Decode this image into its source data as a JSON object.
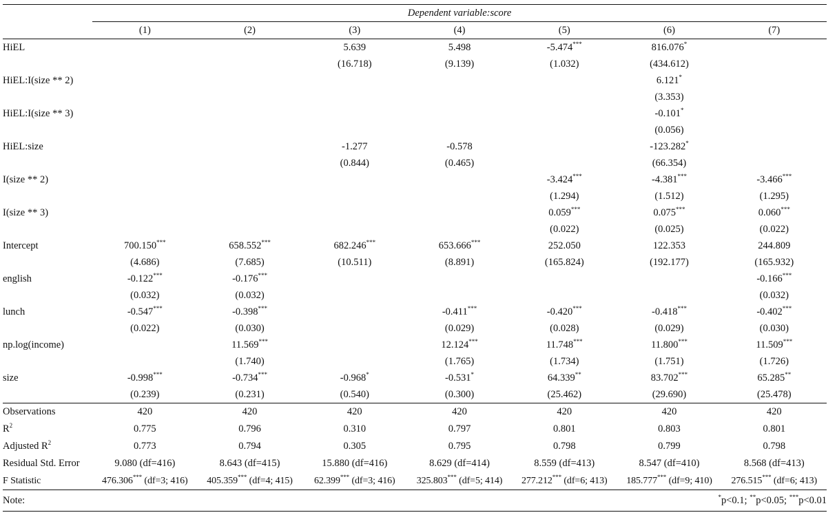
{
  "dependent_variable_label": "Dependent variable:score",
  "columns": [
    "(1)",
    "(2)",
    "(3)",
    "(4)",
    "(5)",
    "(6)",
    "(7)"
  ],
  "coefficients": [
    {
      "label": "HiEL",
      "values": [
        {
          "est": "",
          "stars": "",
          "se": ""
        },
        {
          "est": "",
          "stars": "",
          "se": ""
        },
        {
          "est": "5.639",
          "stars": "",
          "se": "(16.718)"
        },
        {
          "est": "5.498",
          "stars": "",
          "se": "(9.139)"
        },
        {
          "est": "-5.474",
          "stars": "***",
          "se": "(1.032)"
        },
        {
          "est": "816.076",
          "stars": "*",
          "se": "(434.612)"
        },
        {
          "est": "",
          "stars": "",
          "se": ""
        }
      ]
    },
    {
      "label": "HiEL:I(size ** 2)",
      "values": [
        {
          "est": "",
          "stars": "",
          "se": ""
        },
        {
          "est": "",
          "stars": "",
          "se": ""
        },
        {
          "est": "",
          "stars": "",
          "se": ""
        },
        {
          "est": "",
          "stars": "",
          "se": ""
        },
        {
          "est": "",
          "stars": "",
          "se": ""
        },
        {
          "est": "6.121",
          "stars": "*",
          "se": "(3.353)"
        },
        {
          "est": "",
          "stars": "",
          "se": ""
        }
      ]
    },
    {
      "label": "HiEL:I(size ** 3)",
      "values": [
        {
          "est": "",
          "stars": "",
          "se": ""
        },
        {
          "est": "",
          "stars": "",
          "se": ""
        },
        {
          "est": "",
          "stars": "",
          "se": ""
        },
        {
          "est": "",
          "stars": "",
          "se": ""
        },
        {
          "est": "",
          "stars": "",
          "se": ""
        },
        {
          "est": "-0.101",
          "stars": "*",
          "se": "(0.056)"
        },
        {
          "est": "",
          "stars": "",
          "se": ""
        }
      ]
    },
    {
      "label": "HiEL:size",
      "values": [
        {
          "est": "",
          "stars": "",
          "se": ""
        },
        {
          "est": "",
          "stars": "",
          "se": ""
        },
        {
          "est": "-1.277",
          "stars": "",
          "se": "(0.844)"
        },
        {
          "est": "-0.578",
          "stars": "",
          "se": "(0.465)"
        },
        {
          "est": "",
          "stars": "",
          "se": ""
        },
        {
          "est": "-123.282",
          "stars": "*",
          "se": "(66.354)"
        },
        {
          "est": "",
          "stars": "",
          "se": ""
        }
      ]
    },
    {
      "label": "I(size ** 2)",
      "values": [
        {
          "est": "",
          "stars": "",
          "se": ""
        },
        {
          "est": "",
          "stars": "",
          "se": ""
        },
        {
          "est": "",
          "stars": "",
          "se": ""
        },
        {
          "est": "",
          "stars": "",
          "se": ""
        },
        {
          "est": "-3.424",
          "stars": "***",
          "se": "(1.294)"
        },
        {
          "est": "-4.381",
          "stars": "***",
          "se": "(1.512)"
        },
        {
          "est": "-3.466",
          "stars": "***",
          "se": "(1.295)"
        }
      ]
    },
    {
      "label": "I(size ** 3)",
      "values": [
        {
          "est": "",
          "stars": "",
          "se": ""
        },
        {
          "est": "",
          "stars": "",
          "se": ""
        },
        {
          "est": "",
          "stars": "",
          "se": ""
        },
        {
          "est": "",
          "stars": "",
          "se": ""
        },
        {
          "est": "0.059",
          "stars": "***",
          "se": "(0.022)"
        },
        {
          "est": "0.075",
          "stars": "***",
          "se": "(0.025)"
        },
        {
          "est": "0.060",
          "stars": "***",
          "se": "(0.022)"
        }
      ]
    },
    {
      "label": "Intercept",
      "values": [
        {
          "est": "700.150",
          "stars": "***",
          "se": "(4.686)"
        },
        {
          "est": "658.552",
          "stars": "***",
          "se": "(7.685)"
        },
        {
          "est": "682.246",
          "stars": "***",
          "se": "(10.511)"
        },
        {
          "est": "653.666",
          "stars": "***",
          "se": "(8.891)"
        },
        {
          "est": "252.050",
          "stars": "",
          "se": "(165.824)"
        },
        {
          "est": "122.353",
          "stars": "",
          "se": "(192.177)"
        },
        {
          "est": "244.809",
          "stars": "",
          "se": "(165.932)"
        }
      ]
    },
    {
      "label": "english",
      "values": [
        {
          "est": "-0.122",
          "stars": "***",
          "se": "(0.032)"
        },
        {
          "est": "-0.176",
          "stars": "***",
          "se": "(0.032)"
        },
        {
          "est": "",
          "stars": "",
          "se": ""
        },
        {
          "est": "",
          "stars": "",
          "se": ""
        },
        {
          "est": "",
          "stars": "",
          "se": ""
        },
        {
          "est": "",
          "stars": "",
          "se": ""
        },
        {
          "est": "-0.166",
          "stars": "***",
          "se": "(0.032)"
        }
      ]
    },
    {
      "label": "lunch",
      "values": [
        {
          "est": "-0.547",
          "stars": "***",
          "se": "(0.022)"
        },
        {
          "est": "-0.398",
          "stars": "***",
          "se": "(0.030)"
        },
        {
          "est": "",
          "stars": "",
          "se": ""
        },
        {
          "est": "-0.411",
          "stars": "***",
          "se": "(0.029)"
        },
        {
          "est": "-0.420",
          "stars": "***",
          "se": "(0.028)"
        },
        {
          "est": "-0.418",
          "stars": "***",
          "se": "(0.029)"
        },
        {
          "est": "-0.402",
          "stars": "***",
          "se": "(0.030)"
        }
      ]
    },
    {
      "label": "np.log(income)",
      "values": [
        {
          "est": "",
          "stars": "",
          "se": ""
        },
        {
          "est": "11.569",
          "stars": "***",
          "se": "(1.740)"
        },
        {
          "est": "",
          "stars": "",
          "se": ""
        },
        {
          "est": "12.124",
          "stars": "***",
          "se": "(1.765)"
        },
        {
          "est": "11.748",
          "stars": "***",
          "se": "(1.734)"
        },
        {
          "est": "11.800",
          "stars": "***",
          "se": "(1.751)"
        },
        {
          "est": "11.509",
          "stars": "***",
          "se": "(1.726)"
        }
      ]
    },
    {
      "label": "size",
      "values": [
        {
          "est": "-0.998",
          "stars": "***",
          "se": "(0.239)"
        },
        {
          "est": "-0.734",
          "stars": "***",
          "se": "(0.231)"
        },
        {
          "est": "-0.968",
          "stars": "*",
          "se": "(0.540)"
        },
        {
          "est": "-0.531",
          "stars": "*",
          "se": "(0.300)"
        },
        {
          "est": "64.339",
          "stars": "**",
          "se": "(25.462)"
        },
        {
          "est": "83.702",
          "stars": "***",
          "se": "(29.690)"
        },
        {
          "est": "65.285",
          "stars": "**",
          "se": "(25.478)"
        }
      ]
    }
  ],
  "stats": {
    "observations": {
      "label": "Observations",
      "values": [
        "420",
        "420",
        "420",
        "420",
        "420",
        "420",
        "420"
      ]
    },
    "r2": {
      "label": "R",
      "sup": "2",
      "values": [
        "0.775",
        "0.796",
        "0.310",
        "0.797",
        "0.801",
        "0.803",
        "0.801"
      ]
    },
    "adj_r2": {
      "label": "Adjusted R",
      "sup": "2",
      "values": [
        "0.773",
        "0.794",
        "0.305",
        "0.795",
        "0.798",
        "0.799",
        "0.798"
      ]
    },
    "resid_se": {
      "label": "Residual Std. Error",
      "values": [
        "9.080 (df=416)",
        "8.643 (df=415)",
        "15.880 (df=416)",
        "8.629 (df=414)",
        "8.559 (df=413)",
        "8.547 (df=410)",
        "8.568 (df=413)"
      ]
    },
    "f_stat": {
      "label": "F Statistic",
      "values": [
        {
          "est": "476.306",
          "stars": "***",
          "df": " (df=3; 416)"
        },
        {
          "est": "405.359",
          "stars": "***",
          "df": " (df=4; 415)"
        },
        {
          "est": "62.399",
          "stars": "***",
          "df": " (df=3; 416)"
        },
        {
          "est": "325.803",
          "stars": "***",
          "df": " (df=5; 414)"
        },
        {
          "est": "277.212",
          "stars": "***",
          "df": " (df=6; 413)"
        },
        {
          "est": "185.777",
          "stars": "***",
          "df": " (df=9; 410)"
        },
        {
          "est": "276.515",
          "stars": "***",
          "df": " (df=6; 413)"
        }
      ]
    }
  },
  "note": {
    "label": "Note:",
    "items": [
      {
        "stars": "*",
        "text": "p<0.1; "
      },
      {
        "stars": "**",
        "text": "p<0.05; "
      },
      {
        "stars": "***",
        "text": "p<0.01"
      }
    ]
  }
}
